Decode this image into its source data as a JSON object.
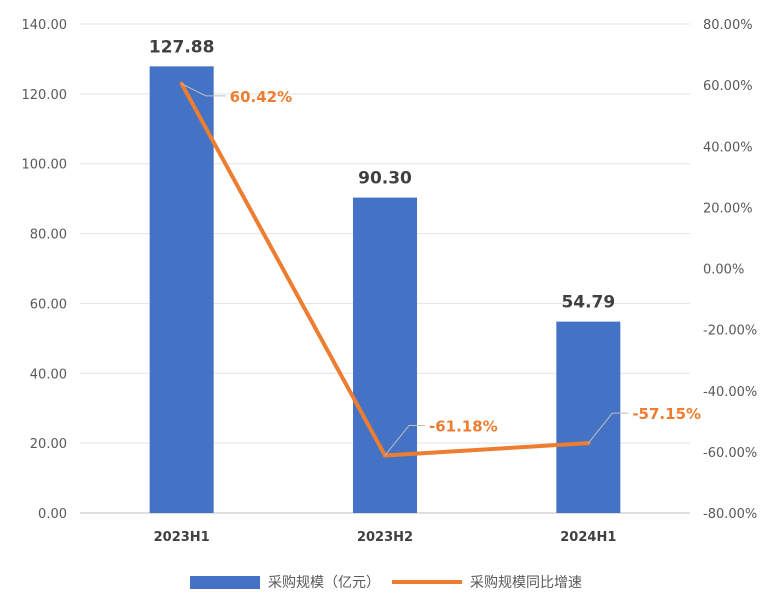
{
  "chart_data": {
    "type": "bar",
    "categories": [
      "2023H1",
      "2023H2",
      "2024H1"
    ],
    "series": [
      {
        "name": "采购规模（亿元）",
        "kind": "bar",
        "axis": "left",
        "color": "#4472C4",
        "values": [
          127.88,
          90.3,
          54.79
        ],
        "labels": [
          "127.88",
          "90.30",
          "54.79"
        ]
      },
      {
        "name": "采购规模同比增速",
        "kind": "line",
        "axis": "right",
        "color": "#ED7D31",
        "values": [
          60.42,
          -61.18,
          -57.15
        ],
        "labels": [
          "60.42%",
          "-61.18%",
          "-57.15%"
        ]
      }
    ],
    "y_left": {
      "min": 0,
      "max": 140,
      "ticks": [
        "0.00",
        "20.00",
        "40.00",
        "60.00",
        "80.00",
        "100.00",
        "120.00",
        "140.00"
      ]
    },
    "y_right": {
      "min": -80,
      "max": 80,
      "ticks": [
        "-80.00%",
        "-60.00%",
        "-40.00%",
        "-20.00%",
        "0.00%",
        "20.00%",
        "40.00%",
        "60.00%",
        "80.00%"
      ]
    },
    "grid": true,
    "legend_position": "bottom"
  }
}
